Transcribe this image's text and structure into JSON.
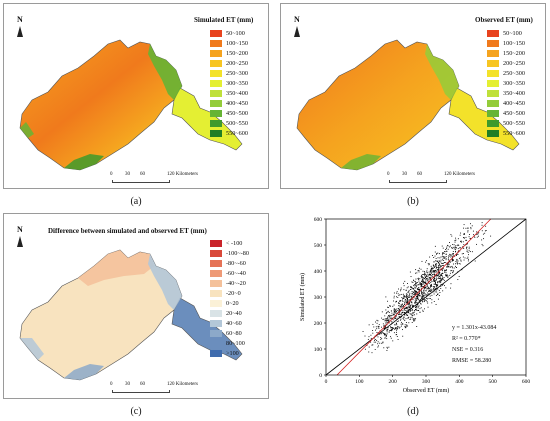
{
  "panels": {
    "a": {
      "north": "N",
      "legend_title": "Simulated ET (mm)",
      "legend": [
        {
          "label": "50~100",
          "color": "#e8431e"
        },
        {
          "label": "100~150",
          "color": "#f07a1c"
        },
        {
          "label": "150~200",
          "color": "#f5a31f"
        },
        {
          "label": "200~250",
          "color": "#f7c522"
        },
        {
          "label": "250~300",
          "color": "#f3e22a"
        },
        {
          "label": "300~350",
          "color": "#e4ef33"
        },
        {
          "label": "350~400",
          "color": "#bfe03a"
        },
        {
          "label": "400~450",
          "color": "#94cc3a"
        },
        {
          "label": "450~500",
          "color": "#66b434"
        },
        {
          "label": "500~550",
          "color": "#3e9a2c"
        },
        {
          "label": "550~600",
          "color": "#1f7f25"
        }
      ],
      "scale": {
        "ticks": [
          "0",
          "30",
          "60"
        ],
        "end": "120 Kilometers"
      },
      "caption": "(a)"
    },
    "b": {
      "north": "N",
      "legend_title": "Observed ET (mm)",
      "legend": [
        {
          "label": "50~100",
          "color": "#e8431e"
        },
        {
          "label": "100~150",
          "color": "#f07a1c"
        },
        {
          "label": "150~200",
          "color": "#f5a31f"
        },
        {
          "label": "200~250",
          "color": "#f7c522"
        },
        {
          "label": "250~300",
          "color": "#f3e22a"
        },
        {
          "label": "300~350",
          "color": "#e4ef33"
        },
        {
          "label": "350~400",
          "color": "#bfe03a"
        },
        {
          "label": "400~450",
          "color": "#94cc3a"
        },
        {
          "label": "450~500",
          "color": "#66b434"
        },
        {
          "label": "500~550",
          "color": "#3e9a2c"
        },
        {
          "label": "550~600",
          "color": "#1f7f25"
        }
      ],
      "scale": {
        "ticks": [
          "0",
          "30",
          "60"
        ],
        "end": "120 Kilometers"
      },
      "caption": "(b)"
    },
    "c": {
      "north": "N",
      "legend_title": "Difference between simulated and observed ET (mm)",
      "legend": [
        {
          "label": "< -100",
          "color": "#c9242a"
        },
        {
          "label": "-100~-80",
          "color": "#d9493a"
        },
        {
          "label": "-80~-60",
          "color": "#e57357"
        },
        {
          "label": "-60~-40",
          "color": "#ee9a77"
        },
        {
          "label": "-40~-20",
          "color": "#f4c19b"
        },
        {
          "label": "-20~0",
          "color": "#f8e3bf"
        },
        {
          "label": "0~20",
          "color": "#fbf1d7"
        },
        {
          "label": "20~40",
          "color": "#d9e3e6"
        },
        {
          "label": "40~60",
          "color": "#b3c7d8"
        },
        {
          "label": "60~80",
          "color": "#8ca9c9"
        },
        {
          "label": "80~100",
          "color": "#6b8ebd"
        },
        {
          "label": ">100",
          "color": "#3f6cae"
        }
      ],
      "scale": {
        "ticks": [
          "0",
          "30",
          "60"
        ],
        "end": "120 Kilometers"
      },
      "caption": "(c)"
    },
    "d": {
      "caption": "(d)",
      "stats": {
        "equation": "y = 1.301x-43.084",
        "r2": "R² = 0.770*",
        "nse": "NSE = 0.316",
        "rmse": "RMSE = 58.280"
      }
    }
  },
  "chart_data": {
    "type": "scatter",
    "xlabel": "Observed ET (mm)",
    "ylabel": "Simulated ET (mm)",
    "xlim": [
      0,
      600
    ],
    "ylim": [
      0,
      600
    ],
    "xticks": [
      "0",
      "100",
      "200",
      "300",
      "400",
      "500",
      "600"
    ],
    "yticks": [
      "0",
      "100",
      "200",
      "300",
      "400",
      "500",
      "600"
    ],
    "one_to_one_line": {
      "from": [
        0,
        0
      ],
      "to": [
        600,
        600
      ],
      "color": "#000000"
    },
    "fit_line": {
      "slope": 1.301,
      "intercept": -43.084,
      "color": "#d42020"
    },
    "point_cloud": {
      "x_range": [
        100,
        520
      ],
      "y_range": [
        80,
        590
      ],
      "color": "#000000"
    },
    "grid": false
  },
  "colors": {
    "map_outline": "#555555"
  }
}
